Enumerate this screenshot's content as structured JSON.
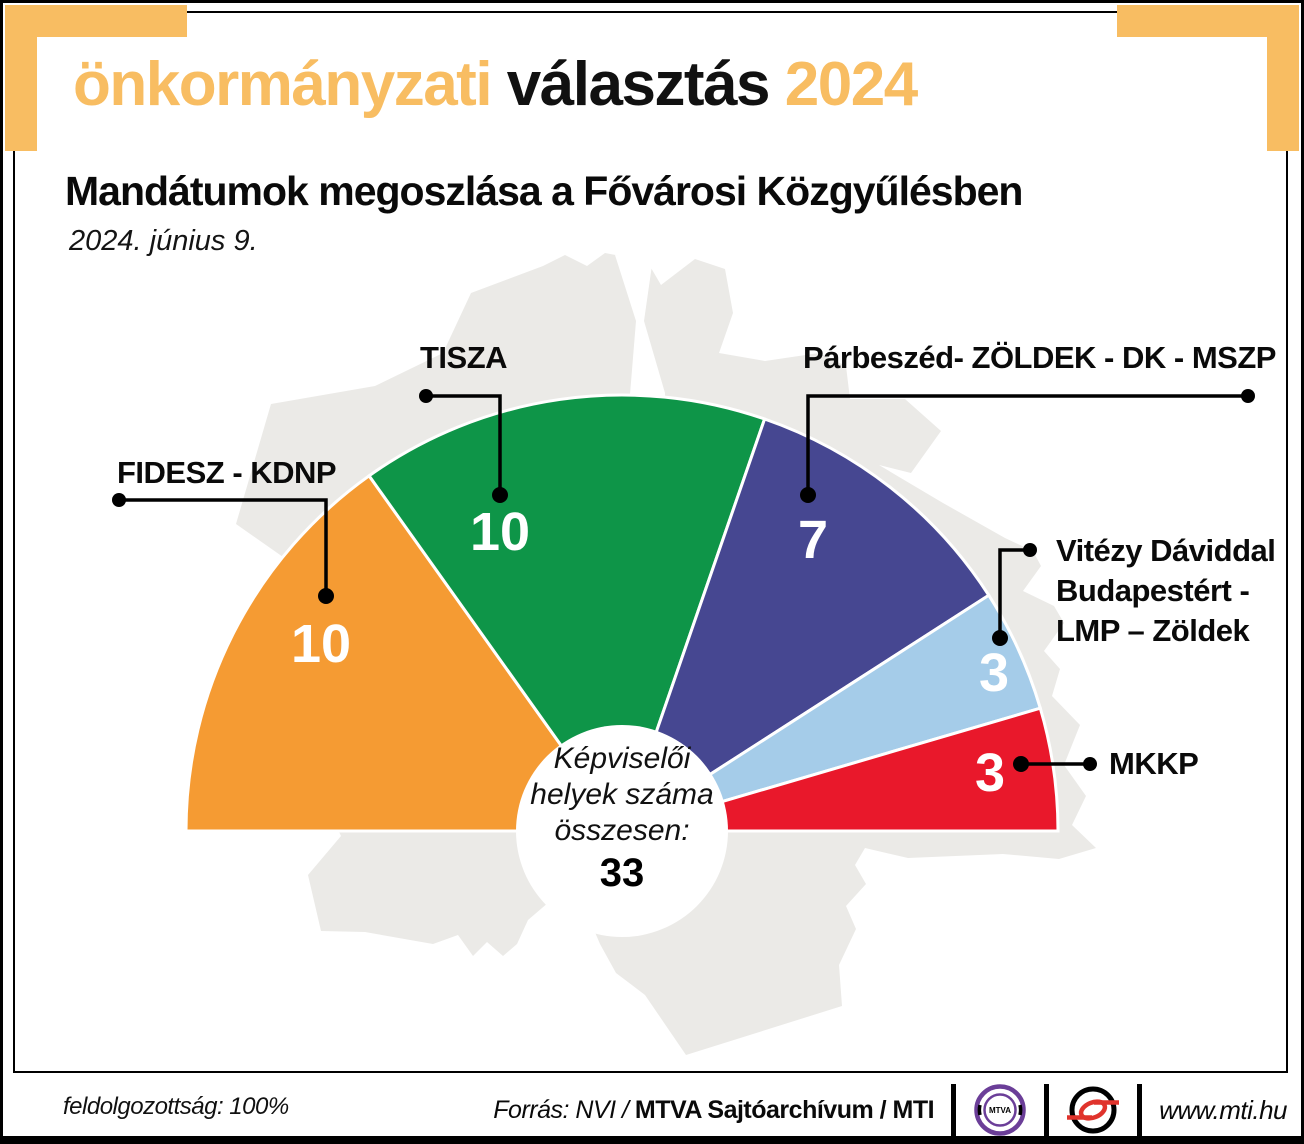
{
  "header": {
    "highlight_left": "önkormányzati",
    "middle": "választás",
    "highlight_right": "2024",
    "accent_color": "#F8BD62"
  },
  "title": "Mandátumok megoszlása a Fővárosi Közgyűlésben",
  "date": "2024. június 9.",
  "chart_data": {
    "type": "pie",
    "variant": "hemicycle-half-donut",
    "title": "Mandátumok megoszlása a Fővárosi Közgyűlésben",
    "date": "2024. június 9.",
    "total_seats": 33,
    "center_label_lines": [
      "Képviselői",
      "helyek száma",
      "összesen:"
    ],
    "legend_position": "callout-labels",
    "background": "Budapest map silhouette",
    "segments": [
      {
        "label": "FIDESZ - KDNP",
        "value": 10,
        "color": "#F59B33"
      },
      {
        "label": "TISZA",
        "value": 10,
        "color": "#0E9548"
      },
      {
        "label": "Párbeszéd- ZÖLDEK - DK - MSZP",
        "value": 7,
        "color": "#464791"
      },
      {
        "label": "Vitézy Dáviddal Budapestért - LMP – Zöldek",
        "value": 3,
        "color": "#A5CCE9",
        "label_lines": [
          "Vitézy Dáviddal",
          "Budapestért -",
          "LMP – Zöldek"
        ]
      },
      {
        "label": "MKKP",
        "value": 3,
        "color": "#E9182B"
      }
    ]
  },
  "footer": {
    "processed_text": "feldolgozottság: 100%",
    "source_italic": "Forrás: NVI /",
    "source_bold": "MTVA Sajtóarchívum",
    "source_bold2": "/ MTI",
    "mtva_logo_text": "MTVA",
    "website": "www.mti.hu"
  }
}
